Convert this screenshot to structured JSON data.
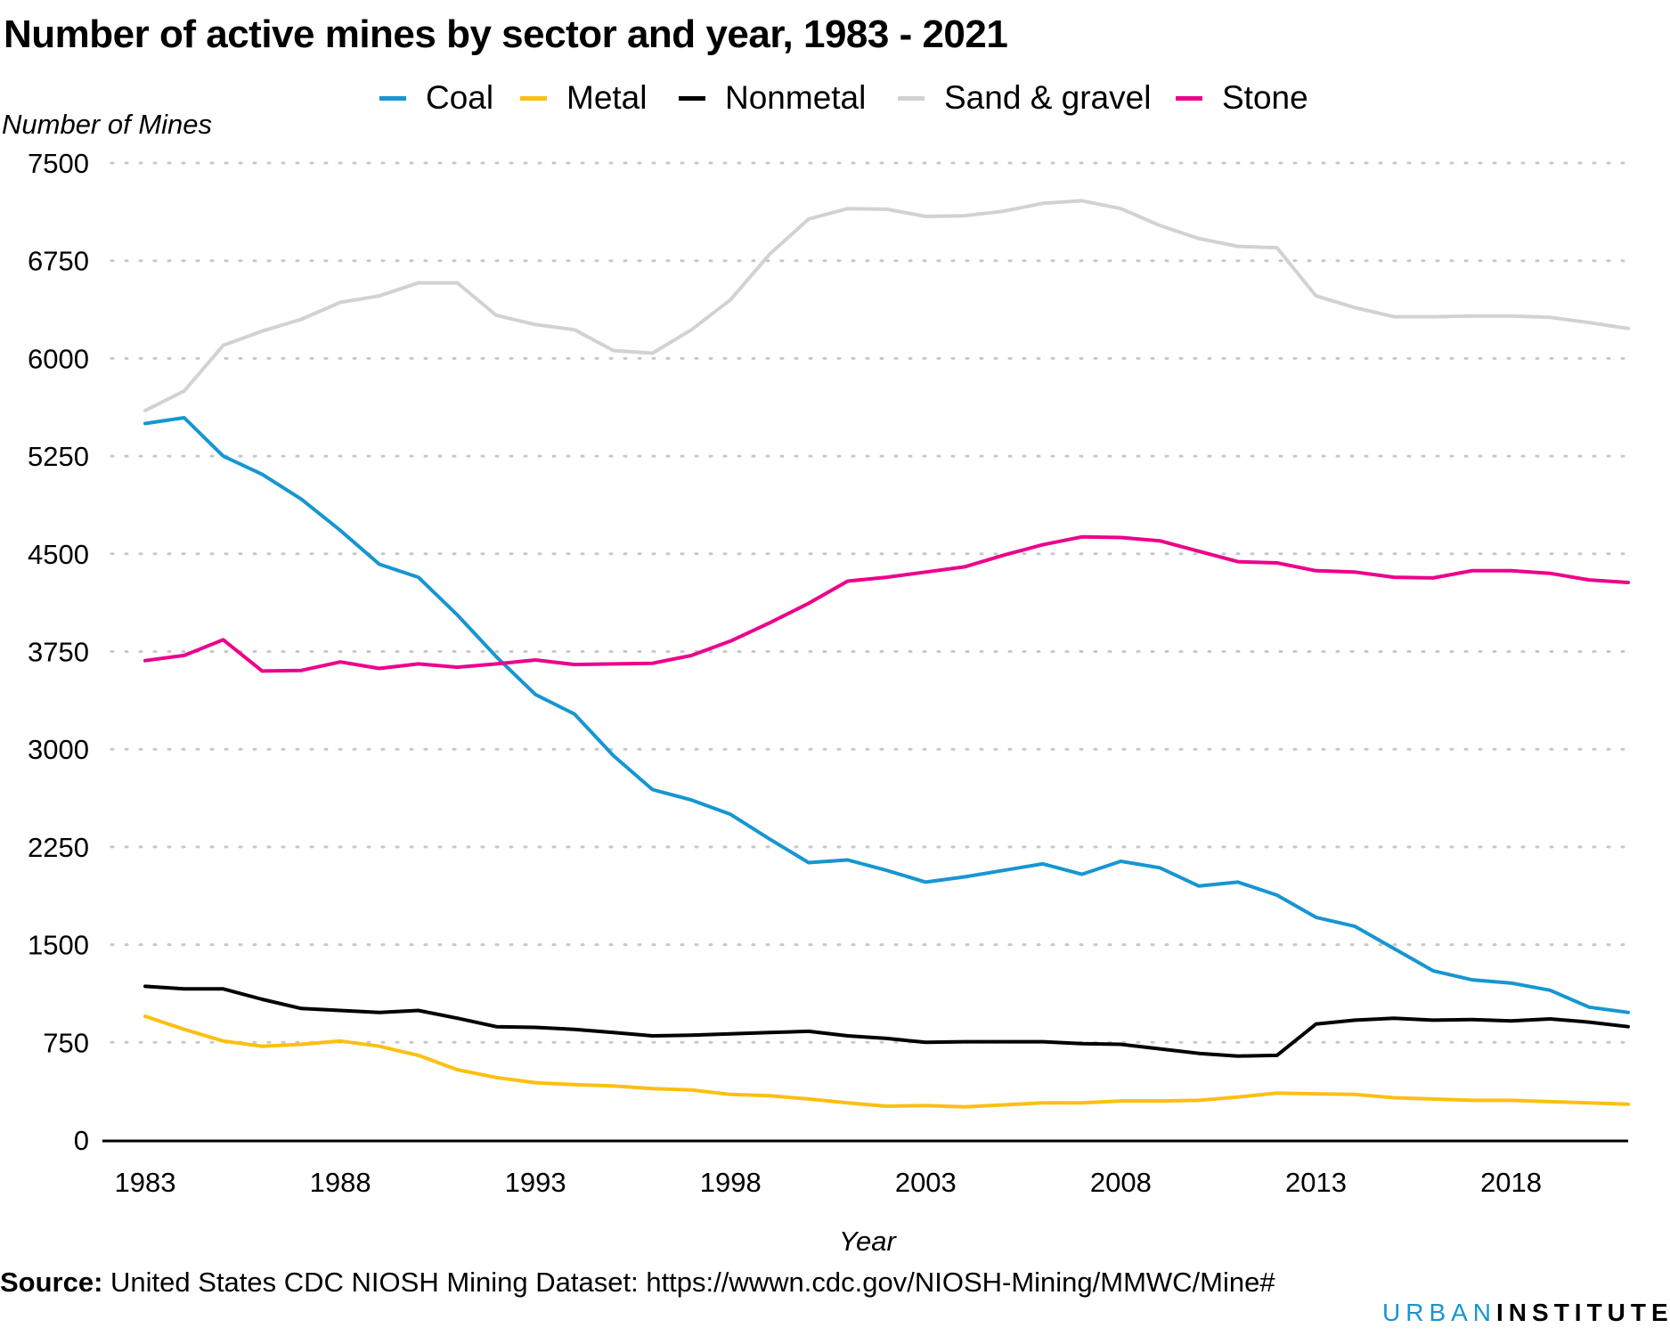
{
  "chart_data": {
    "type": "line",
    "title": "Number of active mines by sector and year, 1983 - 2021",
    "ylabel": "Number of Mines",
    "xlabel": "Year",
    "ylim": [
      0,
      7500
    ],
    "xlim": [
      1983,
      2021
    ],
    "yticks": [
      0,
      750,
      1500,
      2250,
      3000,
      3750,
      4500,
      5250,
      6000,
      6750,
      7500
    ],
    "xticks": [
      1983,
      1988,
      1993,
      1998,
      2003,
      2008,
      2013,
      2018
    ],
    "grid": "horizontal dotted",
    "legend_position": "top",
    "x": [
      1983,
      1984,
      1985,
      1986,
      1987,
      1988,
      1989,
      1990,
      1991,
      1992,
      1993,
      1994,
      1995,
      1996,
      1997,
      1998,
      1999,
      2000,
      2001,
      2002,
      2003,
      2004,
      2005,
      2006,
      2007,
      2008,
      2009,
      2010,
      2011,
      2012,
      2013,
      2014,
      2015,
      2016,
      2017,
      2018,
      2019,
      2020,
      2021
    ],
    "series": [
      {
        "name": "Coal",
        "color": "#1696d2",
        "values": [
          5500,
          5545,
          5250,
          5110,
          4920,
          4680,
          4420,
          4320,
          4030,
          3710,
          3420,
          3270,
          2950,
          2690,
          2610,
          2500,
          2310,
          2130,
          2150,
          2070,
          1980,
          2020,
          2070,
          2120,
          2040,
          2140,
          2090,
          1950,
          1980,
          1880,
          1710,
          1640,
          1470,
          1300,
          1230,
          1205,
          1150,
          1020,
          980
        ]
      },
      {
        "name": "Metal",
        "color": "#fdbf11",
        "values": [
          950,
          850,
          760,
          720,
          735,
          760,
          720,
          650,
          540,
          480,
          440,
          425,
          415,
          395,
          385,
          350,
          340,
          315,
          285,
          260,
          265,
          255,
          270,
          285,
          285,
          300,
          300,
          305,
          330,
          360,
          355,
          350,
          325,
          315,
          305,
          305,
          295,
          285,
          275
        ]
      },
      {
        "name": "Nonmetal",
        "color": "#000000",
        "values": [
          1180,
          1160,
          1160,
          1080,
          1010,
          995,
          980,
          995,
          935,
          870,
          865,
          850,
          825,
          800,
          805,
          815,
          825,
          835,
          800,
          780,
          750,
          755,
          755,
          755,
          740,
          735,
          700,
          665,
          645,
          650,
          890,
          920,
          935,
          920,
          925,
          915,
          930,
          905,
          870
        ]
      },
      {
        "name": "Sand & gravel",
        "color": "#d2d2d2",
        "values": [
          5600,
          5750,
          6100,
          6210,
          6300,
          6430,
          6480,
          6580,
          6580,
          6330,
          6260,
          6220,
          6060,
          6040,
          6220,
          6450,
          6800,
          7070,
          7150,
          7145,
          7090,
          7095,
          7130,
          7190,
          7210,
          7150,
          7020,
          6920,
          6860,
          6850,
          6480,
          6390,
          6320,
          6320,
          6325,
          6325,
          6315,
          6275,
          6230
        ]
      },
      {
        "name": "Stone",
        "color": "#ec008b",
        "values": [
          3680,
          3720,
          3840,
          3600,
          3605,
          3670,
          3620,
          3655,
          3630,
          3655,
          3685,
          3650,
          3655,
          3660,
          3720,
          3830,
          3970,
          4120,
          4290,
          4320,
          4360,
          4400,
          4490,
          4570,
          4630,
          4625,
          4600,
          4520,
          4440,
          4430,
          4370,
          4360,
          4320,
          4315,
          4370,
          4370,
          4350,
          4300,
          4280
        ]
      }
    ]
  },
  "source": {
    "label": "Source:",
    "text": "United States CDC NIOSH Mining Dataset: https://wwwn.cdc.gov/NIOSH-Mining/MMWC/Mine#"
  },
  "branding": {
    "part1": "URBAN",
    "part2": "INSTITUTE"
  }
}
